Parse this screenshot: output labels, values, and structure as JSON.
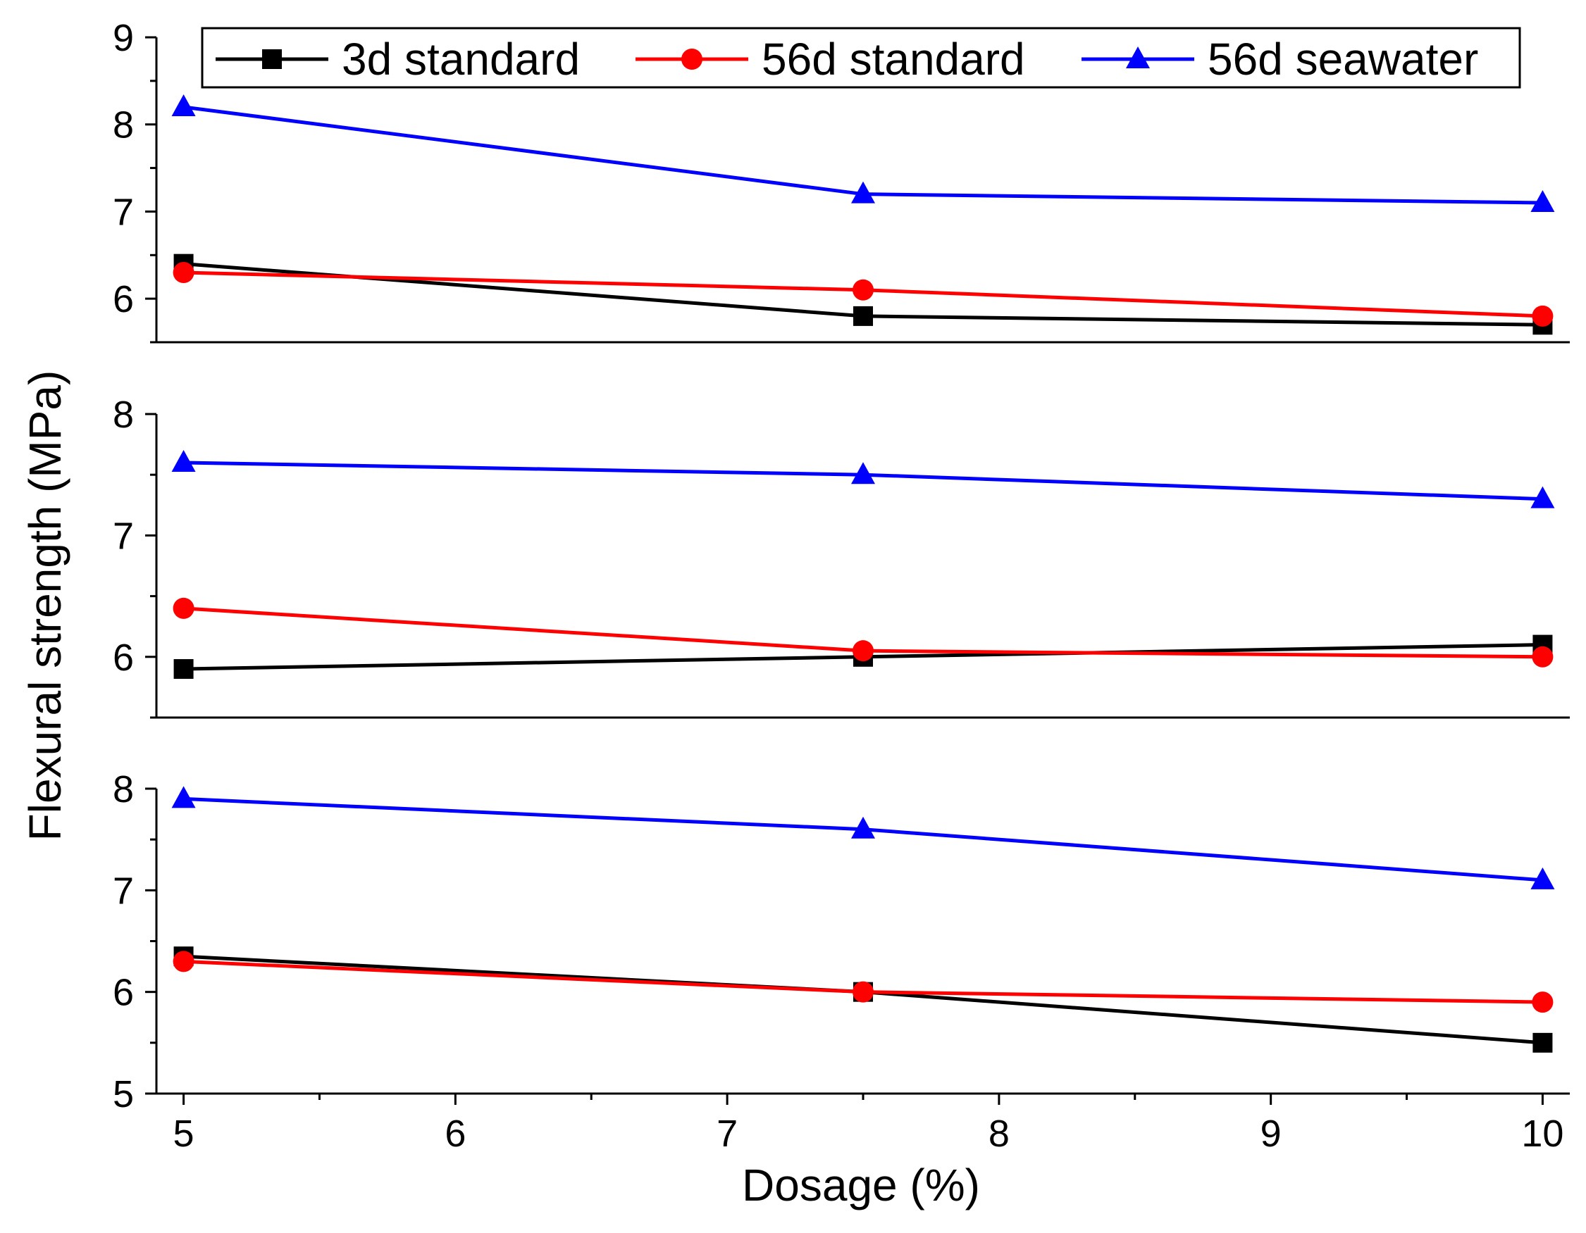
{
  "chart_data": {
    "type": "line",
    "xlabel": "Dosage (%)",
    "ylabel": "Flexural strength (MPa)",
    "xlim": [
      4.9,
      10.1
    ],
    "x_ticks": [
      5,
      6,
      7,
      8,
      9,
      10
    ],
    "x": [
      5,
      7.5,
      10
    ],
    "legend": {
      "placement": "top",
      "entries": [
        {
          "name": "3d standard",
          "color": "#000000",
          "marker": "square"
        },
        {
          "name": "56d standard",
          "color": "#ff0000",
          "marker": "circle"
        },
        {
          "name": "56d seawater",
          "color": "#0000ff",
          "marker": "triangle"
        }
      ]
    },
    "panels": [
      {
        "ylim": [
          5.5,
          9.0
        ],
        "y_ticks": [
          6,
          7,
          8,
          9
        ],
        "series": [
          {
            "name": "3d standard",
            "values": [
              6.4,
              5.8,
              5.7
            ]
          },
          {
            "name": "56d standard",
            "values": [
              6.3,
              6.1,
              5.8
            ]
          },
          {
            "name": "56d seawater",
            "values": [
              8.2,
              7.2,
              7.1
            ]
          }
        ]
      },
      {
        "ylim": [
          5.5,
          8.0
        ],
        "y_ticks": [
          6,
          7,
          8
        ],
        "series": [
          {
            "name": "3d standard",
            "values": [
              5.9,
              6.0,
              6.1
            ]
          },
          {
            "name": "56d standard",
            "values": [
              6.4,
              6.05,
              6.0
            ]
          },
          {
            "name": "56d seawater",
            "values": [
              7.6,
              7.5,
              7.3
            ]
          }
        ]
      },
      {
        "ylim": [
          5.0,
          8.0
        ],
        "y_ticks": [
          5,
          6,
          7,
          8
        ],
        "series": [
          {
            "name": "3d standard",
            "values": [
              6.35,
              6.0,
              5.5
            ]
          },
          {
            "name": "56d standard",
            "values": [
              6.3,
              6.0,
              5.9
            ]
          },
          {
            "name": "56d seawater",
            "values": [
              7.9,
              7.6,
              7.1
            ]
          }
        ]
      }
    ]
  }
}
